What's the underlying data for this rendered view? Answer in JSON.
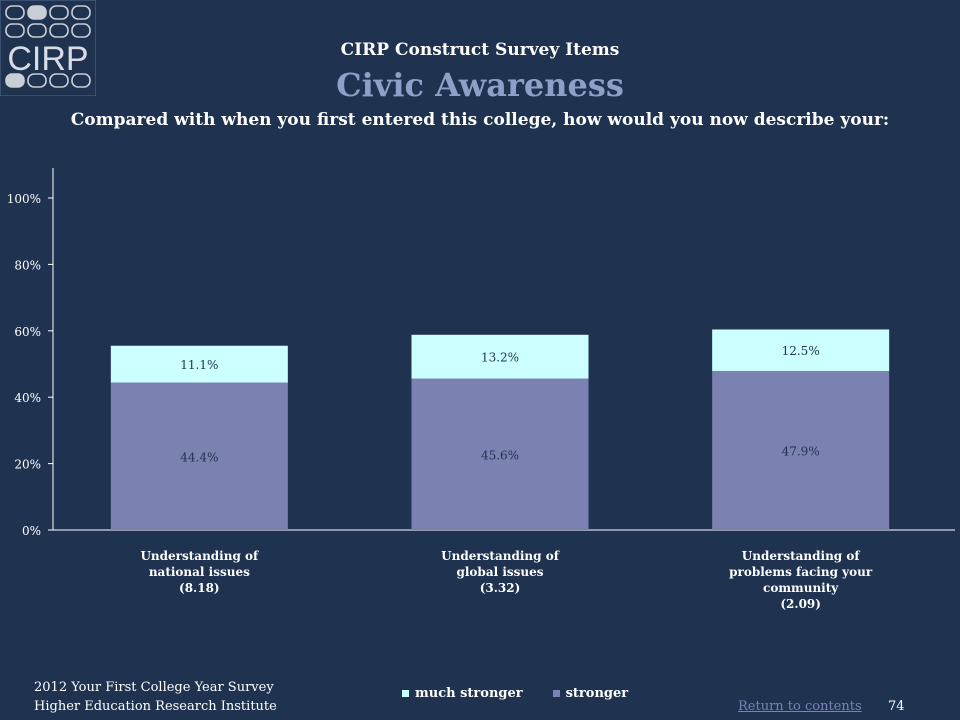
{
  "header": {
    "logo_text": "CIRP",
    "supertitle": "CIRP Construct Survey Items",
    "title": "Civic Awareness",
    "question": "Compared with when you first entered this college, how would you now describe your:"
  },
  "chart_data": {
    "type": "bar",
    "stacked": true,
    "categories": [
      [
        "Understanding of",
        "national issues",
        "(8.18)"
      ],
      [
        "Understanding of",
        "global issues",
        "(3.32)"
      ],
      [
        "Understanding of",
        "problems facing your",
        "community",
        "(2.09)"
      ]
    ],
    "series": [
      {
        "name": "stronger",
        "values": [
          44.4,
          45.6,
          47.9
        ],
        "labels": [
          "44.4%",
          "45.6%",
          "47.9%"
        ],
        "color": "#7b82b2"
      },
      {
        "name": "much stronger",
        "values": [
          11.1,
          13.2,
          12.5
        ],
        "labels": [
          "11.1%",
          "13.2%",
          "12.5%"
        ],
        "color": "#ccffff"
      }
    ],
    "yticks": [
      "0%",
      "20%",
      "40%",
      "60%",
      "80%",
      "100%"
    ],
    "ylim": [
      0,
      110
    ],
    "legend_order": [
      "much stronger",
      "stronger"
    ],
    "legend_position": "bottom",
    "grid": false
  },
  "footer": {
    "lines": [
      "2012 Your First College Year Survey",
      "Higher Education Research Institute"
    ],
    "return_link": "Return to contents",
    "page_number": "74"
  }
}
